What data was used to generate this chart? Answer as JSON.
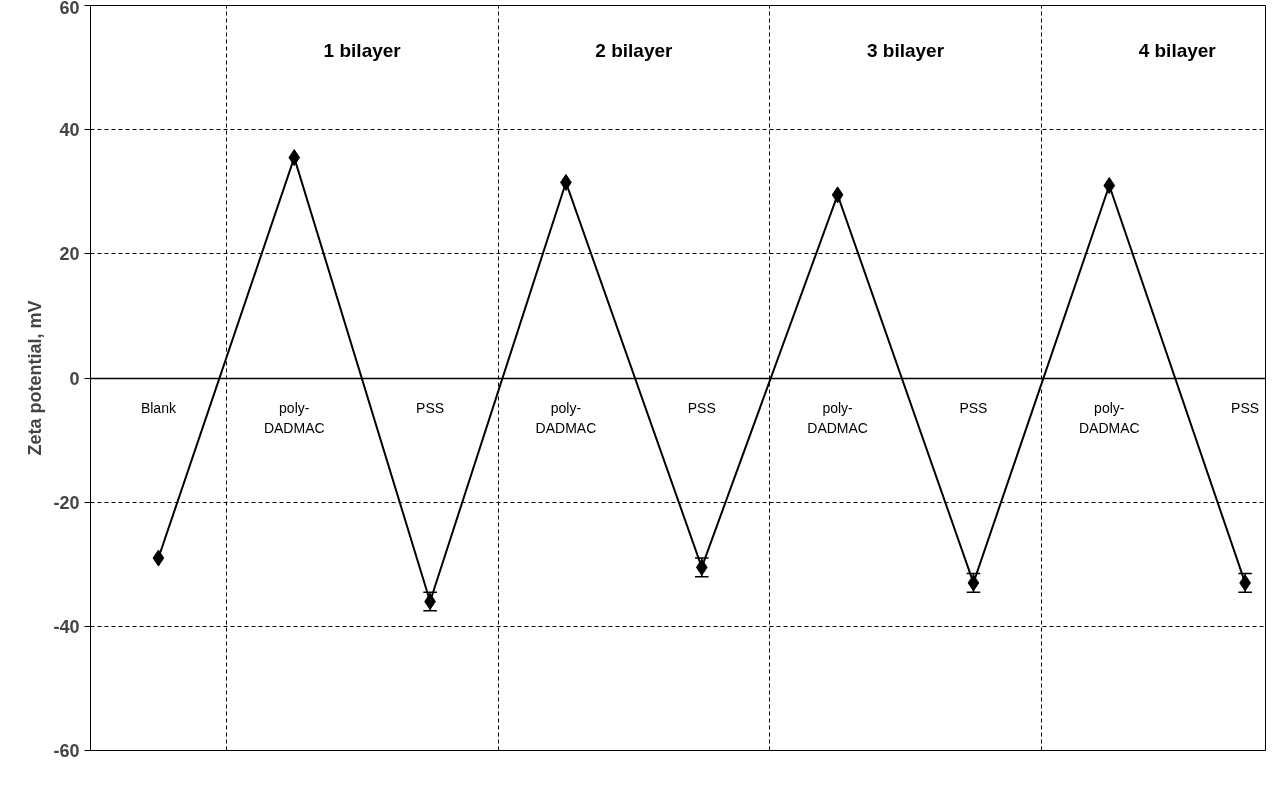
{
  "chart_data": {
    "type": "line",
    "ylabel": "Zeta potential, mV",
    "categories": [
      "Blank",
      "poly-\nDADMAC",
      "PSS",
      "poly-\nDADMAC",
      "PSS",
      "poly-\nDADMAC",
      "PSS",
      "poly-\nDADMAC",
      "PSS"
    ],
    "values": [
      -29,
      35.5,
      -36,
      31.5,
      -30.5,
      29.5,
      -33,
      31,
      -33
    ],
    "errors": [
      null,
      null,
      1.5,
      null,
      1.5,
      null,
      1.5,
      null,
      1.5
    ],
    "color": "#000000",
    "marker": "diamond",
    "line_style": "solid",
    "ylim": [
      -60,
      60
    ],
    "yticks": [
      -60,
      -40,
      -20,
      0,
      20,
      40,
      60
    ],
    "grid": true,
    "annotations": [
      "1 bilayer",
      "2 bilayer",
      "3 bilayer",
      "4 bilayer"
    ]
  }
}
